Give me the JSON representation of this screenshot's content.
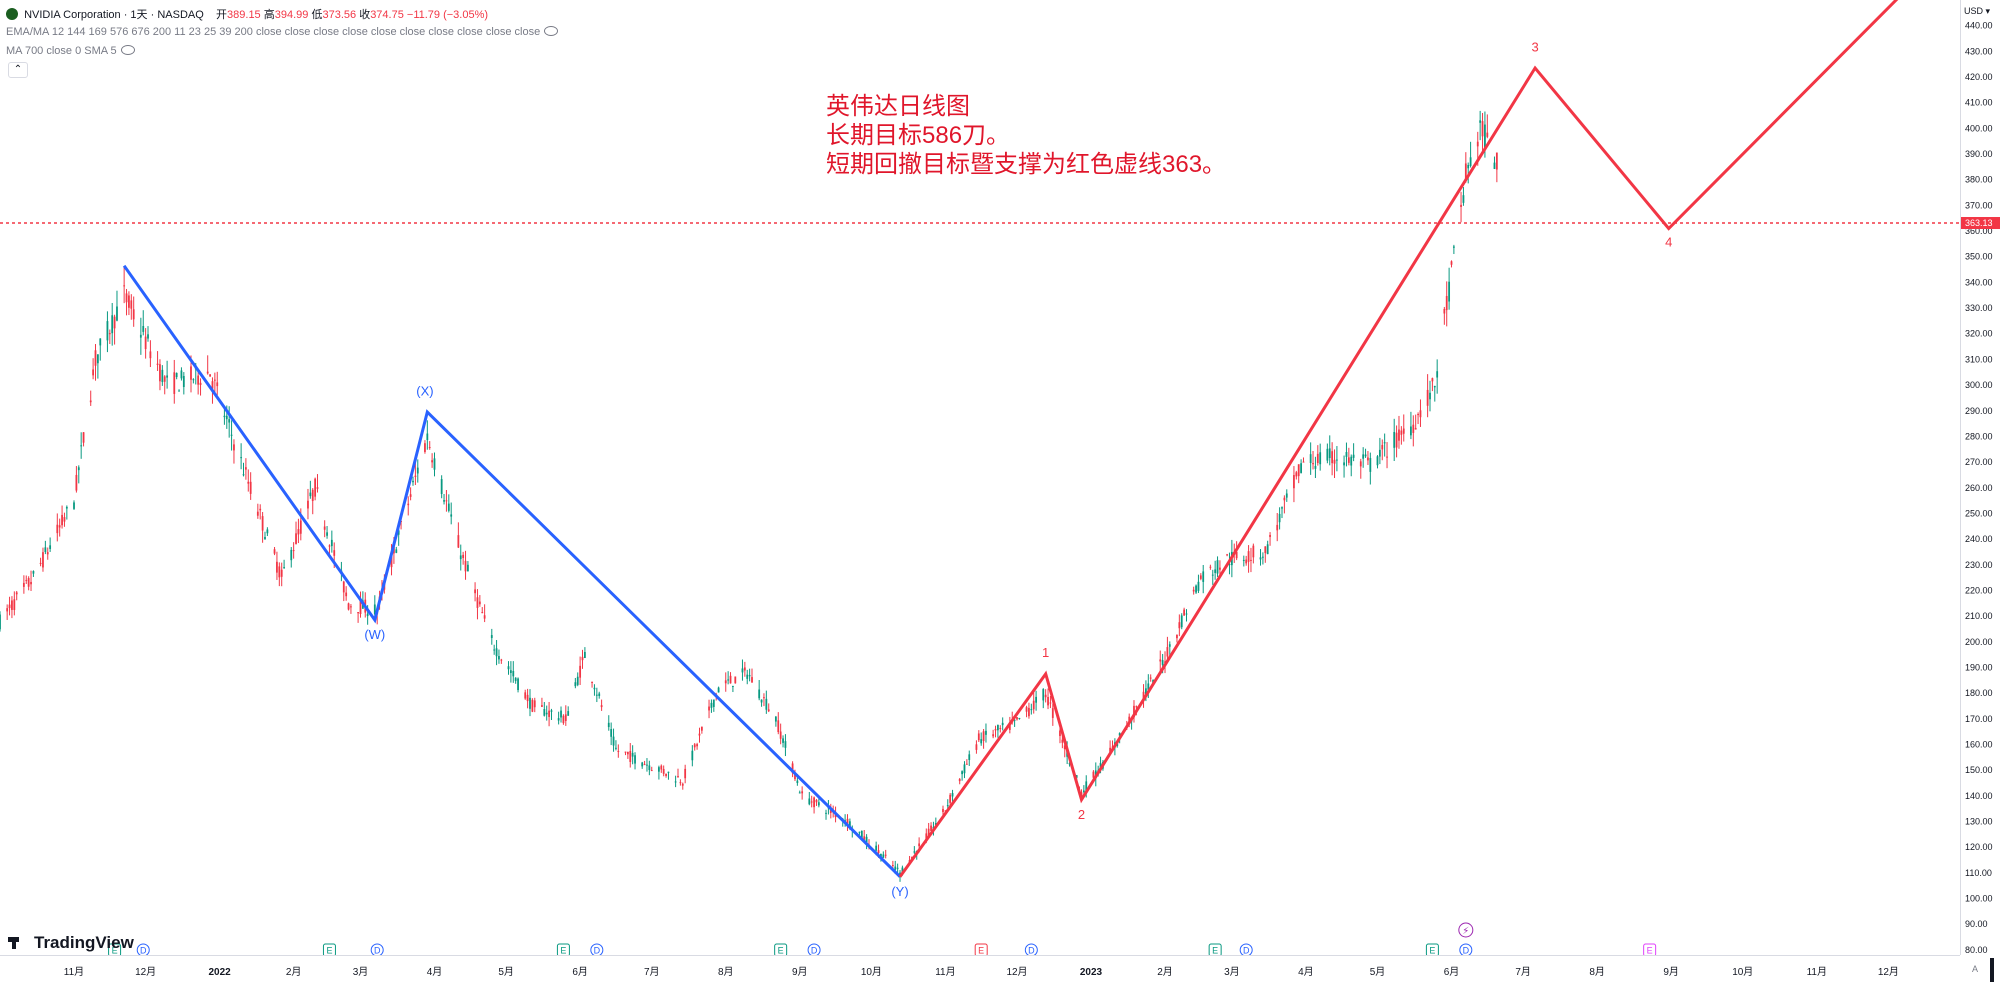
{
  "legend": {
    "symbol_title": "NVIDIA Corporation · 1天 · NASDAQ",
    "open_label": "开",
    "open_value": "389.15",
    "high_label": "高",
    "high_value": "394.99",
    "low_label": "低",
    "low_value": "373.56",
    "close_label": "收",
    "close_value": "374.75",
    "change": "−11.79 (−3.05%)",
    "indicator1": "EMA/MA 12 144 169 576 676 200 11 23 25 39 200 close close close close close close close close close close",
    "indicator2": "MA 700 close 0 SMA 5",
    "collapse_glyph": "⌃"
  },
  "annotation": {
    "line1": "英伟达日线图",
    "line2": "长期目标586刀。",
    "line3": "短期回撤目标暨支撑为红色虚线363。"
  },
  "branding": {
    "logo_text": "TradingView"
  },
  "price_axis": {
    "currency": "USD",
    "current_price_label": "363.13",
    "autoscale_label": "A"
  },
  "colors": {
    "up": "#089981",
    "down": "#f23645",
    "blue_wave": "#2962ff",
    "red_wave": "#f23645",
    "support_line": "#f23645"
  },
  "chart_data": {
    "type": "candlestick",
    "ylim": [
      78,
      450
    ],
    "y_ticks": [
      80,
      90,
      100,
      110,
      120,
      130,
      140,
      150,
      160,
      170,
      180,
      190,
      200,
      210,
      220,
      230,
      240,
      250,
      260,
      270,
      280,
      290,
      300,
      310,
      320,
      330,
      340,
      350,
      360,
      370,
      380,
      390,
      400,
      410,
      420,
      430,
      440
    ],
    "x_ticks": [
      "11月",
      "12月",
      "2022",
      "2月",
      "3月",
      "4月",
      "5月",
      "6月",
      "7月",
      "8月",
      "9月",
      "10月",
      "11月",
      "12月",
      "2023",
      "2月",
      "3月",
      "4月",
      "5月",
      "6月",
      "7月",
      "8月",
      "9月",
      "10月",
      "11月",
      "12月"
    ],
    "x_tick_dates": [
      "2021-11-01",
      "2021-12-01",
      "2022-01-01",
      "2022-02-01",
      "2022-03-01",
      "2022-04-01",
      "2022-05-01",
      "2022-06-01",
      "2022-07-01",
      "2022-08-01",
      "2022-09-01",
      "2022-10-01",
      "2022-11-01",
      "2022-12-01",
      "2023-01-01",
      "2023-02-01",
      "2023-03-01",
      "2023-04-01",
      "2023-05-01",
      "2023-06-01",
      "2023-07-01",
      "2023-08-01",
      "2023-09-01",
      "2023-10-01",
      "2023-11-01",
      "2023-12-01"
    ],
    "x_domain": [
      "2021-10-01",
      "2023-12-31"
    ],
    "price_path": [
      [
        "2021-10-01",
        208
      ],
      [
        "2021-10-15",
        225
      ],
      [
        "2021-11-01",
        255
      ],
      [
        "2021-11-10",
        310
      ],
      [
        "2021-11-22",
        335
      ],
      [
        "2021-12-10",
        300
      ],
      [
        "2021-12-28",
        305
      ],
      [
        "2022-01-10",
        270
      ],
      [
        "2022-01-27",
        225
      ],
      [
        "2022-02-10",
        260
      ],
      [
        "2022-02-24",
        215
      ],
      [
        "2022-03-08",
        212
      ],
      [
        "2022-03-29",
        280
      ],
      [
        "2022-04-12",
        235
      ],
      [
        "2022-04-25",
        200
      ],
      [
        "2022-05-12",
        175
      ],
      [
        "2022-05-26",
        170
      ],
      [
        "2022-06-03",
        195
      ],
      [
        "2022-06-16",
        158
      ],
      [
        "2022-07-05",
        150
      ],
      [
        "2022-07-14",
        146
      ],
      [
        "2022-07-29",
        182
      ],
      [
        "2022-08-10",
        188
      ],
      [
        "2022-08-22",
        170
      ],
      [
        "2022-09-02",
        140
      ],
      [
        "2022-09-20",
        131
      ],
      [
        "2022-10-13",
        110
      ],
      [
        "2022-10-31",
        133
      ],
      [
        "2022-11-15",
        162
      ],
      [
        "2022-11-30",
        168
      ],
      [
        "2022-12-13",
        180
      ],
      [
        "2022-12-28",
        141
      ],
      [
        "2023-01-10",
        158
      ],
      [
        "2023-01-31",
        192
      ],
      [
        "2023-02-16",
        225
      ],
      [
        "2023-02-27",
        232
      ],
      [
        "2023-03-15",
        235
      ],
      [
        "2023-03-31",
        270
      ],
      [
        "2023-04-14",
        272
      ],
      [
        "2023-04-28",
        269
      ],
      [
        "2023-05-16",
        285
      ],
      [
        "2023-05-25",
        300
      ],
      [
        "2023-06-07",
        381
      ],
      [
        "2023-06-13",
        400
      ],
      [
        "2023-06-21",
        385
      ]
    ],
    "series": [
      {
        "name": "",
        "type": "line",
        "points": [
          [
            "2021-11-22",
            346.5
          ],
          [
            "2022-03-07",
            208.5
          ],
          [
            "2022-03-29",
            289.5
          ],
          [
            "2022-10-13",
            108.5
          ]
        ]
      },
      {
        "name": "",
        "type": "line",
        "points": [
          [
            "2022-10-13",
            108.5
          ],
          [
            "2022-12-13",
            187.5
          ],
          [
            "2022-12-28",
            138.5
          ],
          [
            "2023-07-06",
            423.5
          ],
          [
            "2023-08-31",
            361
          ],
          [
            "2023-12-31",
            475
          ]
        ]
      }
    ],
    "support_level": 363.13,
    "wave_labels": [
      {
        "text": "(W)",
        "date": "2022-03-07",
        "price": 201,
        "color": "#2962ff"
      },
      {
        "text": "(X)",
        "date": "2022-03-28",
        "price": 296,
        "color": "#2962ff"
      },
      {
        "text": "(Y)",
        "date": "2022-10-13",
        "price": 101,
        "color": "#2962ff"
      },
      {
        "text": "1",
        "date": "2022-12-13",
        "price": 194,
        "color": "#f23645"
      },
      {
        "text": "2",
        "date": "2022-12-28",
        "price": 131,
        "color": "#f23645"
      },
      {
        "text": "3",
        "date": "2023-07-06",
        "price": 430,
        "color": "#f23645"
      },
      {
        "text": "4",
        "date": "2023-08-31",
        "price": 354,
        "color": "#f23645"
      }
    ],
    "event_markers": [
      {
        "type": "E",
        "date": "2021-11-18",
        "color": "#089981"
      },
      {
        "type": "D",
        "date": "2021-11-30",
        "color": "#2962ff"
      },
      {
        "type": "E",
        "date": "2022-02-16",
        "color": "#089981"
      },
      {
        "type": "D",
        "date": "2022-03-08",
        "color": "#2962ff"
      },
      {
        "type": "E",
        "date": "2022-05-25",
        "color": "#089981"
      },
      {
        "type": "D",
        "date": "2022-06-08",
        "color": "#2962ff"
      },
      {
        "type": "E",
        "date": "2022-08-24",
        "color": "#089981"
      },
      {
        "type": "D",
        "date": "2022-09-07",
        "color": "#2962ff"
      },
      {
        "type": "E",
        "date": "2022-11-16",
        "color": "#f23645"
      },
      {
        "type": "D",
        "date": "2022-12-07",
        "color": "#2962ff"
      },
      {
        "type": "E",
        "date": "2023-02-22",
        "color": "#089981"
      },
      {
        "type": "D",
        "date": "2023-03-07",
        "color": "#2962ff"
      },
      {
        "type": "E",
        "date": "2023-05-24",
        "color": "#089981"
      },
      {
        "type": "D",
        "date": "2023-06-07",
        "color": "#2962ff"
      },
      {
        "type": "E",
        "date": "2023-08-23",
        "color": "#e040fb"
      }
    ],
    "split_marker": {
      "date": "2023-06-07",
      "glyph": "⚡",
      "color": "#9c27b0"
    }
  }
}
